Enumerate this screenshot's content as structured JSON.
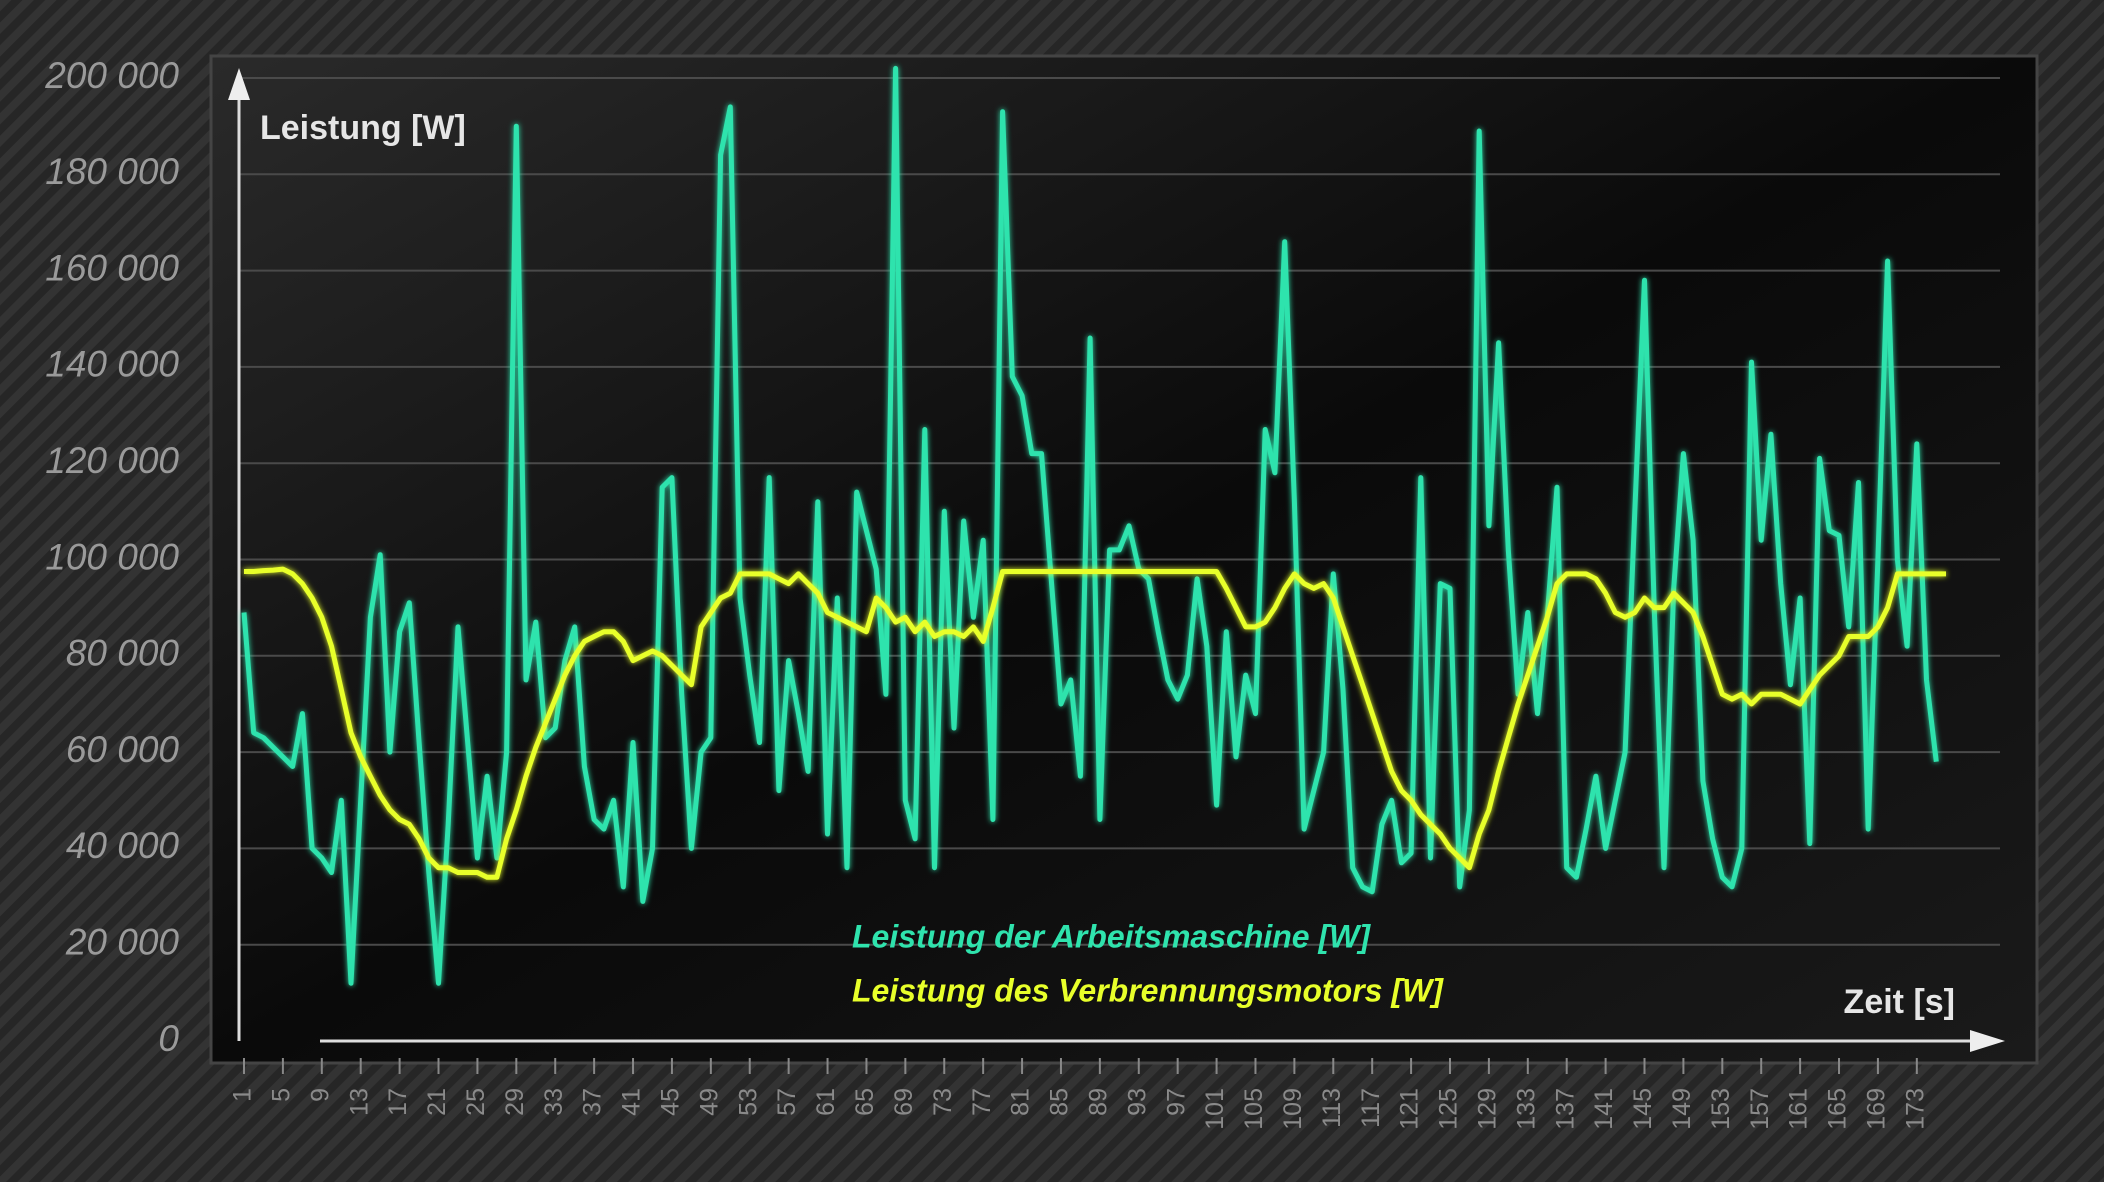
{
  "chart_data": {
    "type": "line",
    "y_label": "Leistung [W]",
    "x_label": "Zeit [s]",
    "x": [
      1,
      2,
      3,
      4,
      5,
      6,
      7,
      8,
      9,
      10,
      11,
      12,
      13,
      14,
      15,
      16,
      17,
      18,
      19,
      20,
      21,
      22,
      23,
      24,
      25,
      26,
      27,
      28,
      29,
      30,
      31,
      32,
      33,
      34,
      35,
      36,
      37,
      38,
      39,
      40,
      41,
      42,
      43,
      44,
      45,
      46,
      47,
      48,
      49,
      50,
      51,
      52,
      53,
      54,
      55,
      56,
      57,
      58,
      59,
      60,
      61,
      62,
      63,
      64,
      65,
      66,
      67,
      68,
      69,
      70,
      71,
      72,
      73,
      74,
      75,
      76,
      77,
      78,
      79,
      80,
      81,
      82,
      83,
      84,
      85,
      86,
      87,
      88,
      89,
      90,
      91,
      92,
      93,
      94,
      95,
      96,
      97,
      98,
      99,
      100,
      101,
      102,
      103,
      104,
      105,
      106,
      107,
      108,
      109,
      110,
      111,
      112,
      113,
      114,
      115,
      116,
      117,
      118,
      119,
      120,
      121,
      122,
      123,
      124,
      125,
      126,
      127,
      128,
      129,
      130,
      131,
      132,
      133,
      134,
      135,
      136,
      137,
      138,
      139,
      140,
      141,
      142,
      143,
      144,
      145,
      146,
      147,
      148,
      149,
      150,
      151,
      152,
      153,
      154,
      155,
      156,
      157,
      158,
      159,
      160,
      161,
      162,
      163,
      164,
      165,
      166,
      167,
      168,
      169,
      170,
      171,
      172,
      173,
      174,
      175,
      176
    ],
    "series": [
      {
        "name": "Leistung der Arbeitsmaschine [W]",
        "color": "#2fe3ad",
        "values": [
          89000,
          64000,
          63000,
          61000,
          59000,
          57000,
          68000,
          40000,
          38000,
          35000,
          50000,
          12000,
          50000,
          88000,
          101000,
          60000,
          85000,
          91000,
          62000,
          35000,
          12000,
          45000,
          86000,
          62000,
          38000,
          55000,
          38000,
          60000,
          190000,
          75000,
          87000,
          63000,
          65000,
          79000,
          86000,
          57000,
          46000,
          44000,
          50000,
          32000,
          62000,
          29000,
          40000,
          115000,
          117000,
          72000,
          40000,
          60000,
          63000,
          184000,
          194000,
          92000,
          76000,
          62000,
          117000,
          52000,
          79000,
          68000,
          56000,
          112000,
          43000,
          92000,
          36000,
          114000,
          106000,
          98000,
          72000,
          202000,
          50000,
          42000,
          127000,
          36000,
          110000,
          65000,
          108000,
          88000,
          104000,
          46000,
          193000,
          138000,
          134000,
          122000,
          122000,
          96000,
          70000,
          75000,
          55000,
          146000,
          46000,
          102000,
          102000,
          107000,
          98000,
          96000,
          85000,
          75000,
          71000,
          76000,
          96000,
          82000,
          49000,
          85000,
          59000,
          76000,
          68000,
          127000,
          118000,
          166000,
          112000,
          44000,
          52000,
          60000,
          97000,
          73000,
          36000,
          32000,
          31000,
          45000,
          50000,
          37000,
          39000,
          117000,
          38000,
          95000,
          94000,
          32000,
          48000,
          189000,
          107000,
          145000,
          102000,
          72000,
          89000,
          68000,
          88000,
          115000,
          36000,
          34000,
          44000,
          55000,
          40000,
          50000,
          60000,
          110000,
          158000,
          90000,
          36000,
          94000,
          122000,
          104000,
          54000,
          42000,
          34000,
          32000,
          40000,
          141000,
          104000,
          126000,
          95000,
          74000,
          92000,
          41000,
          121000,
          106000,
          105000,
          86000,
          116000,
          44000,
          100000,
          162000,
          100000,
          82000,
          124000,
          75000,
          58000,
          null
        ]
      },
      {
        "name": "Leistung des Verbrennungsmotors [W]",
        "color": "#e8ff2a",
        "values": [
          97500,
          97500,
          97700,
          97800,
          98000,
          97000,
          95000,
          92000,
          88000,
          82000,
          73000,
          64000,
          59000,
          55000,
          51000,
          48000,
          46000,
          45000,
          42000,
          38000,
          36000,
          36000,
          35000,
          35000,
          35000,
          34000,
          34000,
          42000,
          48000,
          55000,
          61000,
          66000,
          71000,
          76000,
          80000,
          83000,
          84000,
          85000,
          85000,
          83000,
          79000,
          80000,
          81000,
          80000,
          78000,
          76000,
          74000,
          86000,
          89000,
          92000,
          93000,
          97000,
          97000,
          97000,
          97000,
          96000,
          95000,
          97000,
          95000,
          93000,
          89000,
          88000,
          87000,
          86000,
          85000,
          92000,
          90000,
          87000,
          88000,
          85000,
          87000,
          84000,
          85000,
          85000,
          84000,
          86000,
          83000,
          90000,
          97500,
          97500,
          97500,
          97500,
          97500,
          97500,
          97500,
          97500,
          97500,
          97500,
          97500,
          97500,
          97500,
          97500,
          97500,
          97500,
          97500,
          97500,
          97500,
          97500,
          97500,
          97500,
          97500,
          94000,
          90000,
          86000,
          86000,
          87000,
          90000,
          94000,
          97000,
          95000,
          94000,
          95000,
          92000,
          86000,
          80000,
          74000,
          68000,
          62000,
          56000,
          52000,
          50000,
          47000,
          45000,
          43000,
          40000,
          38000,
          36000,
          43000,
          48000,
          56000,
          63000,
          70000,
          76000,
          82000,
          88000,
          95000,
          97000,
          97000,
          97000,
          96000,
          93000,
          89000,
          88000,
          89000,
          92000,
          90000,
          90000,
          93000,
          91000,
          89000,
          84000,
          78000,
          72000,
          71000,
          72000,
          70000,
          72000,
          72000,
          72000,
          71000,
          70000,
          73000,
          76000,
          78000,
          80000,
          84000,
          84000,
          84000,
          86000,
          90000,
          97000,
          97000,
          97000,
          97000,
          97000,
          97000
        ]
      }
    ],
    "xlim": [
      1,
      176
    ],
    "xticks": [
      1,
      5,
      9,
      13,
      17,
      21,
      25,
      29,
      33,
      37,
      41,
      45,
      49,
      53,
      57,
      61,
      65,
      69,
      73,
      77,
      81,
      85,
      89,
      93,
      97,
      101,
      105,
      109,
      113,
      117,
      121,
      125,
      129,
      133,
      137,
      141,
      145,
      149,
      153,
      157,
      161,
      165,
      169,
      173
    ],
    "ylim": [
      0,
      200000
    ],
    "yticks": [
      0,
      {
        "value": 20000,
        "label": "20 000"
      },
      {
        "value": 40000,
        "label": "40 000"
      },
      {
        "value": 60000,
        "label": "60 000"
      },
      {
        "value": 80000,
        "label": "80 000"
      },
      {
        "value": 100000,
        "label": "100 000"
      },
      {
        "value": 120000,
        "label": "120 000"
      },
      {
        "value": 140000,
        "label": "140 000"
      },
      {
        "value": 160000,
        "label": "160 000"
      },
      {
        "value": 180000,
        "label": "180 000"
      },
      {
        "value": 200000,
        "label": "200 000"
      }
    ],
    "grid": true
  }
}
